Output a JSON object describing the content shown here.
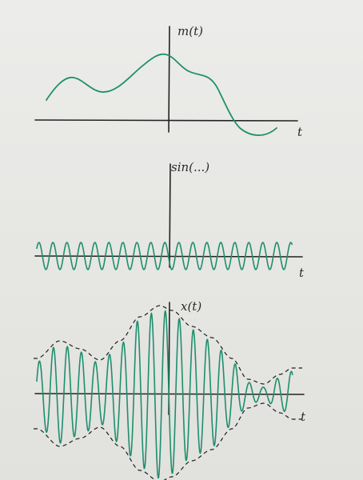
{
  "colors": {
    "paper": "#e9e9e6",
    "ink": "#222222",
    "wave": "#1e8f6e"
  },
  "panels": [
    {
      "id": "message",
      "y_label": "m(t)",
      "x_label": "t",
      "curve": "smooth message signal"
    },
    {
      "id": "carrier",
      "y_label": "sin(...)",
      "x_label": "t",
      "curve": "constant-amplitude sinusoid"
    },
    {
      "id": "modulated",
      "y_label": "x(t)",
      "x_label": "t",
      "curve": "amplitude-modulated carrier with dashed envelope"
    }
  ]
}
